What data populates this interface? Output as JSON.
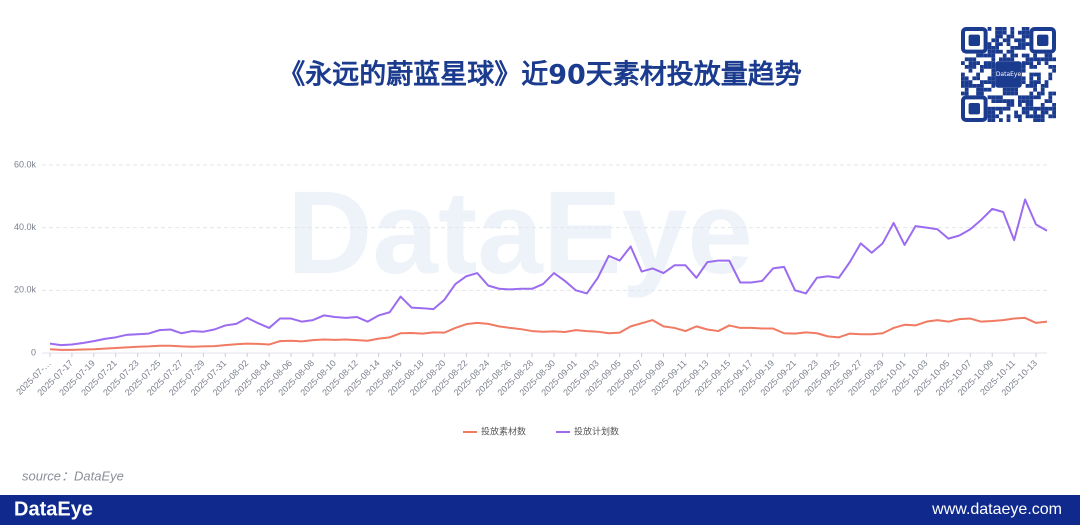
{
  "chart_data": {
    "type": "line",
    "title": "《永远的蔚蓝星球》近90天素材投放量趋势",
    "categories": [
      "2025-07-…",
      null,
      "2025-07-17",
      null,
      "2025-07-19",
      null,
      "2025-07-21",
      null,
      "2025-07-23",
      null,
      "2025-07-25",
      null,
      "2025-07-27",
      null,
      "2025-07-29",
      null,
      "2025-07-31",
      null,
      "2025-08-02",
      null,
      "2025-08-04",
      null,
      "2025-08-06",
      null,
      "2025-08-08",
      null,
      "2025-08-10",
      null,
      "2025-08-12",
      null,
      "2025-08-14",
      null,
      "2025-08-16",
      null,
      "2025-08-18",
      null,
      "2025-08-20",
      null,
      "2025-08-22",
      null,
      "2025-08-24",
      null,
      "2025-08-26",
      null,
      "2025-08-28",
      null,
      "2025-08-30",
      null,
      "2025-09-01",
      null,
      "2025-09-03",
      null,
      "2025-09-05",
      null,
      "2025-09-07",
      null,
      "2025-09-09",
      null,
      "2025-09-11",
      null,
      "2025-09-13",
      null,
      "2025-09-15",
      null,
      "2025-09-17",
      null,
      "2025-09-19",
      null,
      "2025-09-21",
      null,
      "2025-09-23",
      null,
      "2025-09-25",
      null,
      "2025-09-27",
      null,
      "2025-09-29",
      null,
      "2025-10-01",
      null,
      "2025-10-03",
      null,
      "2025-10-05",
      null,
      "2025-10-07",
      null,
      "2025-10-09",
      null,
      "2025-10-11",
      null,
      "2025-10-13",
      null
    ],
    "series": [
      {
        "name": "投放素材数",
        "color": "#f07a62",
        "values": [
          1200,
          1000,
          1000,
          1100,
          1200,
          1400,
          1600,
          1800,
          2000,
          2100,
          2300,
          2300,
          2100,
          2000,
          2100,
          2200,
          2500,
          2800,
          3000,
          2900,
          2700,
          3800,
          3900,
          3700,
          4100,
          4300,
          4200,
          4300,
          4100,
          3900,
          4600,
          5000,
          6300,
          6400,
          6200,
          6600,
          6500,
          8000,
          9200,
          9600,
          9300,
          8500,
          8000,
          7600,
          7000,
          6800,
          6900,
          6700,
          7300,
          7000,
          6800,
          6300,
          6500,
          8500,
          9500,
          10500,
          8500,
          8000,
          7000,
          8500,
          7500,
          7000,
          8800,
          8000,
          8000,
          7800,
          7800,
          6300,
          6200,
          6600,
          6300,
          5300,
          5000,
          6200,
          6000,
          6000,
          6300,
          8000,
          9000,
          8800,
          10000,
          10500,
          10000,
          10800,
          11000,
          10000,
          10200,
          10500,
          11000,
          11200,
          9600,
          10000
        ]
      },
      {
        "name": "投放计划数",
        "color": "#9b6cf0",
        "values": [
          3000,
          2500,
          2700,
          3200,
          3800,
          4500,
          5000,
          5800,
          6000,
          6200,
          7300,
          7500,
          6300,
          7000,
          6800,
          7500,
          8800,
          9300,
          11200,
          9500,
          8000,
          11000,
          11000,
          10000,
          10500,
          12000,
          11500,
          11200,
          11500,
          10000,
          12000,
          13000,
          18000,
          14500,
          14300,
          14000,
          17000,
          22000,
          24500,
          25500,
          21500,
          20500,
          20300,
          20500,
          20500,
          22000,
          25500,
          23000,
          20000,
          19000,
          24000,
          31000,
          29500,
          34000,
          26000,
          27000,
          25500,
          28000,
          28000,
          24000,
          29000,
          29500,
          29500,
          22500,
          22500,
          23000,
          27000,
          27500,
          20000,
          19000,
          24000,
          24500,
          24000,
          29000,
          35000,
          32000,
          35000,
          41500,
          34500,
          40500,
          40000,
          39500,
          36500,
          37500,
          39500,
          42500,
          46000,
          45000,
          36000,
          49000,
          41000,
          39000
        ]
      }
    ],
    "ylim": [
      0,
      60000
    ],
    "yticks": [
      0,
      {
        "value": 20000,
        "label": "20.0k"
      },
      {
        "value": 40000,
        "label": "40.0k"
      },
      {
        "value": 60000,
        "label": "60.0k"
      }
    ],
    "grid": true,
    "legend": "bottom"
  },
  "watermark": "DataEye",
  "qr_label": "DataEye",
  "source": "source：DataEye",
  "footer": {
    "brand": "DataEye",
    "url": "www.dataeye.com"
  }
}
